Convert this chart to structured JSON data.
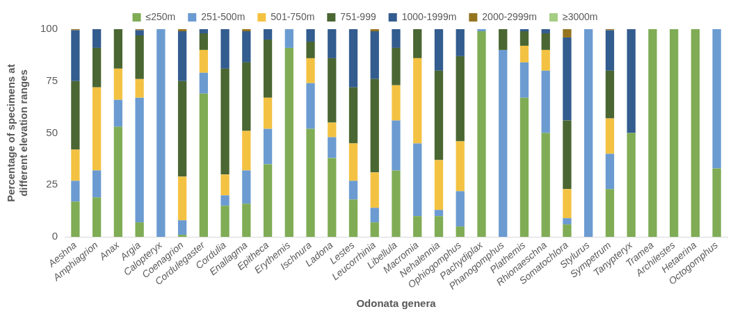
{
  "chart_data": {
    "type": "bar",
    "stacked": true,
    "xlabel": "Odonata genera",
    "ylabel": "Percentage of specimens at different elevation ranges",
    "categories": [
      "Aeshna",
      "Amphiagrion",
      "Anax",
      "Argia",
      "Calopteryx",
      "Coenagrion",
      "Cordulegaster",
      "Cordulia",
      "Enallagma",
      "Epitheca",
      "Erythemis",
      "Ischnura",
      "Ladona",
      "Lestes",
      "Leucorrhinia",
      "Libellula",
      "Macromia",
      "Nehalennia",
      "Ophiogomphus",
      "Pachydiplax",
      "Phanogomphus",
      "Plathemis",
      "Rhionaeschna",
      "Somatochlora",
      "Stylurus",
      "Sympetrum",
      "Tanypteryx",
      "Tramea",
      "Archilestes",
      "Hetaerina",
      "Octogomphus"
    ],
    "series": [
      {
        "name": "≤250m",
        "color": "#7fac55",
        "values": [
          17,
          19,
          53,
          7,
          0,
          1,
          69,
          15,
          16,
          35,
          91,
          52,
          38,
          18,
          7,
          32,
          10,
          10,
          5,
          99,
          0,
          67,
          50,
          6,
          0,
          23,
          50,
          100,
          100,
          100,
          33
        ]
      },
      {
        "name": "251-500m",
        "color": "#6b9bd1",
        "values": [
          10,
          13,
          13,
          60,
          100,
          7,
          10,
          5,
          16,
          17,
          9,
          22,
          10,
          9,
          7,
          24,
          35,
          3,
          17,
          1,
          90,
          17,
          30,
          3,
          100,
          17,
          0,
          0,
          0,
          0,
          67
        ]
      },
      {
        "name": "501-750m",
        "color": "#f4c242",
        "values": [
          15,
          40,
          15,
          9,
          0,
          21,
          11,
          10,
          19,
          15,
          0,
          12,
          7,
          18,
          17,
          17,
          41,
          24,
          24,
          0,
          0,
          8,
          10,
          14,
          0,
          17,
          0,
          0,
          0,
          0,
          0
        ]
      },
      {
        "name": "751-999",
        "color": "#4a6632",
        "values": [
          33,
          19,
          19,
          21,
          0,
          46,
          8,
          51,
          33,
          28,
          0,
          8,
          31,
          27,
          45,
          18,
          14,
          43,
          41,
          0,
          10,
          7,
          8,
          33,
          0,
          23,
          0,
          0,
          0,
          0,
          0
        ]
      },
      {
        "name": "1000-1999m",
        "color": "#335c8f",
        "values": [
          24.5,
          9,
          0,
          2.5,
          0,
          24,
          2,
          19,
          15,
          5,
          0,
          6,
          14,
          28,
          23,
          9,
          0,
          20,
          13,
          0,
          0,
          1,
          2,
          40,
          0,
          19.5,
          50,
          0,
          0,
          0,
          0
        ]
      },
      {
        "name": "2000-2999m",
        "color": "#957420",
        "values": [
          0.5,
          0,
          0,
          0.5,
          0,
          1,
          0,
          0,
          1,
          0,
          0,
          0,
          0,
          0,
          1,
          0,
          0,
          0,
          0,
          0,
          0,
          0,
          0,
          4,
          0,
          0.5,
          0,
          0,
          0,
          0,
          0
        ]
      },
      {
        "name": "≥3000m",
        "color": "#a5cd84",
        "values": [
          0,
          0,
          0,
          0,
          0,
          0,
          0,
          0,
          0,
          0,
          0,
          0,
          0,
          0,
          0,
          0,
          0,
          0,
          0,
          0,
          0,
          0,
          0,
          0,
          0,
          0,
          0,
          0,
          0,
          0,
          0
        ]
      }
    ],
    "ylim": [
      0,
      100
    ],
    "yticks": [
      0,
      25,
      50,
      75,
      100
    ],
    "grid": false,
    "legend": "top"
  }
}
